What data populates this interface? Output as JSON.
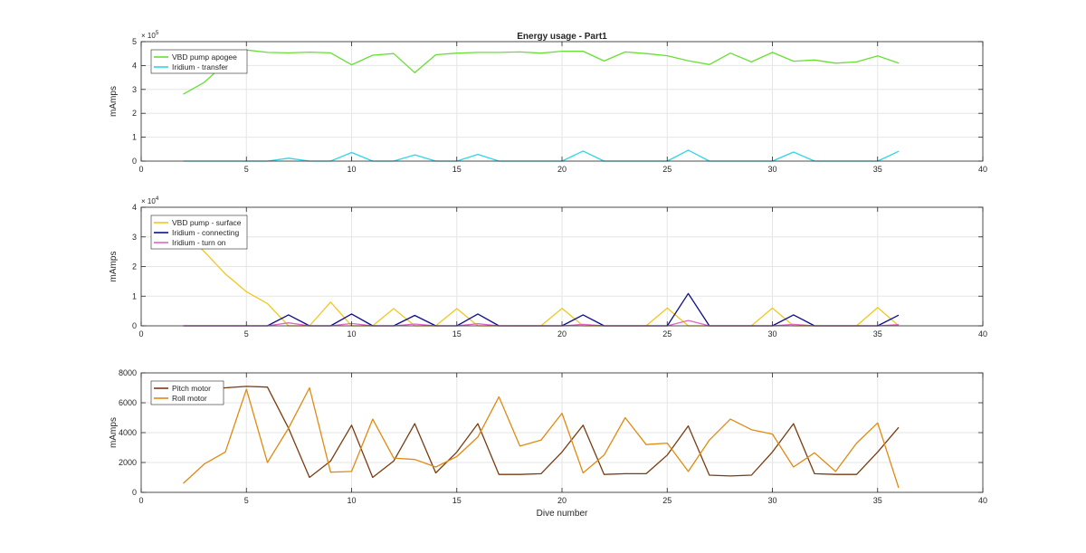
{
  "figure_title": "Energy usage - Part1",
  "x_axis_label": "Dive number",
  "chart_data": [
    {
      "type": "line",
      "title": "Energy usage - Part1",
      "xlabel": "",
      "ylabel": "mAmps",
      "xlim": [
        0,
        40
      ],
      "ylim": [
        0,
        500000
      ],
      "x_ticks": [
        0,
        5,
        10,
        15,
        20,
        25,
        30,
        35,
        40
      ],
      "y_ticks": [
        0,
        100000,
        200000,
        300000,
        400000,
        500000
      ],
      "y_tick_labels": [
        "0",
        "1",
        "2",
        "3",
        "4",
        "5"
      ],
      "y_exponent_label": "× 10",
      "y_exponent_power": "5",
      "grid": true,
      "legend_position": "top-left",
      "series": [
        {
          "name": "VBD pump apogee",
          "color": "#66e033",
          "x": [
            2,
            3,
            4,
            5,
            6,
            7,
            8,
            9,
            10,
            11,
            12,
            13,
            14,
            15,
            16,
            17,
            18,
            19,
            20,
            21,
            22,
            23,
            24,
            25,
            26,
            27,
            28,
            29,
            30,
            31,
            32,
            33,
            34,
            35,
            36
          ],
          "values": [
            280000,
            330000,
            410000,
            465000,
            455000,
            453000,
            456000,
            453000,
            403000,
            443000,
            450000,
            370000,
            445000,
            452000,
            455000,
            455000,
            457000,
            452000,
            460000,
            460000,
            419000,
            457000,
            450000,
            441000,
            420000,
            404000,
            452000,
            415000,
            455000,
            418000,
            423000,
            410000,
            415000,
            440000,
            410000
          ]
        },
        {
          "name": "Iridium - transfer",
          "color": "#2fd6e6",
          "x": [
            2,
            3,
            4,
            5,
            6,
            7,
            8,
            9,
            10,
            11,
            12,
            13,
            14,
            15,
            16,
            17,
            18,
            19,
            20,
            21,
            22,
            23,
            24,
            25,
            26,
            27,
            28,
            29,
            30,
            31,
            32,
            33,
            34,
            35,
            36
          ],
          "values": [
            0,
            0,
            0,
            0,
            0,
            12000,
            0,
            0,
            36000,
            0,
            0,
            26000,
            0,
            0,
            28000,
            0,
            0,
            0,
            0,
            42000,
            0,
            0,
            0,
            0,
            46000,
            0,
            0,
            0,
            0,
            38000,
            0,
            0,
            0,
            0,
            41000
          ]
        }
      ]
    },
    {
      "type": "line",
      "xlabel": "",
      "ylabel": "mAmps",
      "xlim": [
        0,
        40
      ],
      "ylim": [
        0,
        40000
      ],
      "x_ticks": [
        0,
        5,
        10,
        15,
        20,
        25,
        30,
        35,
        40
      ],
      "y_ticks": [
        0,
        10000,
        20000,
        30000,
        40000
      ],
      "y_tick_labels": [
        "0",
        "1",
        "2",
        "3",
        "4"
      ],
      "y_exponent_label": "× 10",
      "y_exponent_power": "4",
      "grid": true,
      "legend_position": "top-left",
      "series": [
        {
          "name": "VBD pump - surface",
          "color": "#f0c81e",
          "x": [
            2,
            3,
            4,
            5,
            6,
            7,
            8,
            9,
            10,
            11,
            12,
            13,
            14,
            15,
            16,
            17,
            18,
            19,
            20,
            21,
            22,
            23,
            24,
            25,
            26,
            27,
            28,
            29,
            30,
            31,
            32,
            33,
            34,
            35,
            36
          ],
          "values": [
            32000,
            25000,
            17500,
            11500,
            7500,
            0,
            0,
            8000,
            0,
            0,
            5800,
            0,
            0,
            5800,
            0,
            0,
            0,
            0,
            5900,
            0,
            0,
            0,
            0,
            6000,
            0,
            0,
            0,
            0,
            6000,
            0,
            0,
            0,
            0,
            6200,
            0
          ]
        },
        {
          "name": "Iridium - connecting",
          "color": "#0d0d8c",
          "x": [
            2,
            3,
            4,
            5,
            6,
            7,
            8,
            9,
            10,
            11,
            12,
            13,
            14,
            15,
            16,
            17,
            18,
            19,
            20,
            21,
            22,
            23,
            24,
            25,
            26,
            27,
            28,
            29,
            30,
            31,
            32,
            33,
            34,
            35,
            36
          ],
          "values": [
            0,
            0,
            0,
            0,
            0,
            3700,
            0,
            0,
            4000,
            0,
            0,
            3500,
            0,
            0,
            4000,
            0,
            0,
            0,
            0,
            3700,
            0,
            0,
            0,
            0,
            10900,
            0,
            0,
            0,
            0,
            3700,
            0,
            0,
            0,
            0,
            3600
          ]
        },
        {
          "name": "Iridium - turn on",
          "color": "#e066c4",
          "x": [
            2,
            3,
            4,
            5,
            6,
            7,
            8,
            9,
            10,
            11,
            12,
            13,
            14,
            15,
            16,
            17,
            18,
            19,
            20,
            21,
            22,
            23,
            24,
            25,
            26,
            27,
            28,
            29,
            30,
            31,
            32,
            33,
            34,
            35,
            36
          ],
          "values": [
            0,
            0,
            0,
            0,
            0,
            1000,
            0,
            0,
            800,
            0,
            0,
            600,
            0,
            0,
            700,
            0,
            0,
            0,
            0,
            500,
            0,
            0,
            0,
            0,
            1800,
            0,
            0,
            0,
            0,
            500,
            0,
            0,
            0,
            0,
            400
          ]
        }
      ]
    },
    {
      "type": "line",
      "xlabel": "Dive number",
      "ylabel": "mAmps",
      "xlim": [
        0,
        40
      ],
      "ylim": [
        0,
        8000
      ],
      "x_ticks": [
        0,
        5,
        10,
        15,
        20,
        25,
        30,
        35,
        40
      ],
      "y_ticks": [
        0,
        2000,
        4000,
        6000,
        8000
      ],
      "y_tick_labels": [
        "0",
        "2000",
        "4000",
        "6000",
        "8000"
      ],
      "grid": true,
      "legend_position": "top-left",
      "series": [
        {
          "name": "Pitch motor",
          "color": "#7a3b10",
          "x": [
            2,
            3,
            4,
            5,
            6,
            7,
            8,
            9,
            10,
            11,
            12,
            13,
            14,
            15,
            16,
            17,
            18,
            19,
            20,
            21,
            22,
            23,
            24,
            25,
            26,
            27,
            28,
            29,
            30,
            31,
            32,
            33,
            34,
            35,
            36
          ],
          "values": [
            6800,
            6900,
            7000,
            7100,
            7050,
            4300,
            1000,
            2100,
            4500,
            1000,
            2100,
            4600,
            1300,
            2700,
            4600,
            1200,
            1200,
            1250,
            2700,
            4500,
            1200,
            1250,
            1250,
            2500,
            4450,
            1150,
            1100,
            1150,
            2700,
            4600,
            1250,
            1200,
            1200,
            2700,
            4350
          ]
        },
        {
          "name": "Roll motor",
          "color": "#e08a12",
          "x": [
            2,
            3,
            4,
            5,
            6,
            7,
            8,
            9,
            10,
            11,
            12,
            13,
            14,
            15,
            16,
            17,
            18,
            19,
            20,
            21,
            22,
            23,
            24,
            25,
            26,
            27,
            28,
            29,
            30,
            31,
            32,
            33,
            34,
            35,
            36
          ],
          "values": [
            600,
            1900,
            2700,
            6900,
            2000,
            4300,
            7000,
            1350,
            1400,
            4900,
            2300,
            2200,
            1700,
            2400,
            3700,
            6400,
            3100,
            3500,
            5300,
            1300,
            2500,
            5000,
            3200,
            3300,
            1400,
            3500,
            4900,
            4200,
            3900,
            1700,
            2650,
            1400,
            3300,
            4650,
            300
          ]
        }
      ]
    }
  ]
}
